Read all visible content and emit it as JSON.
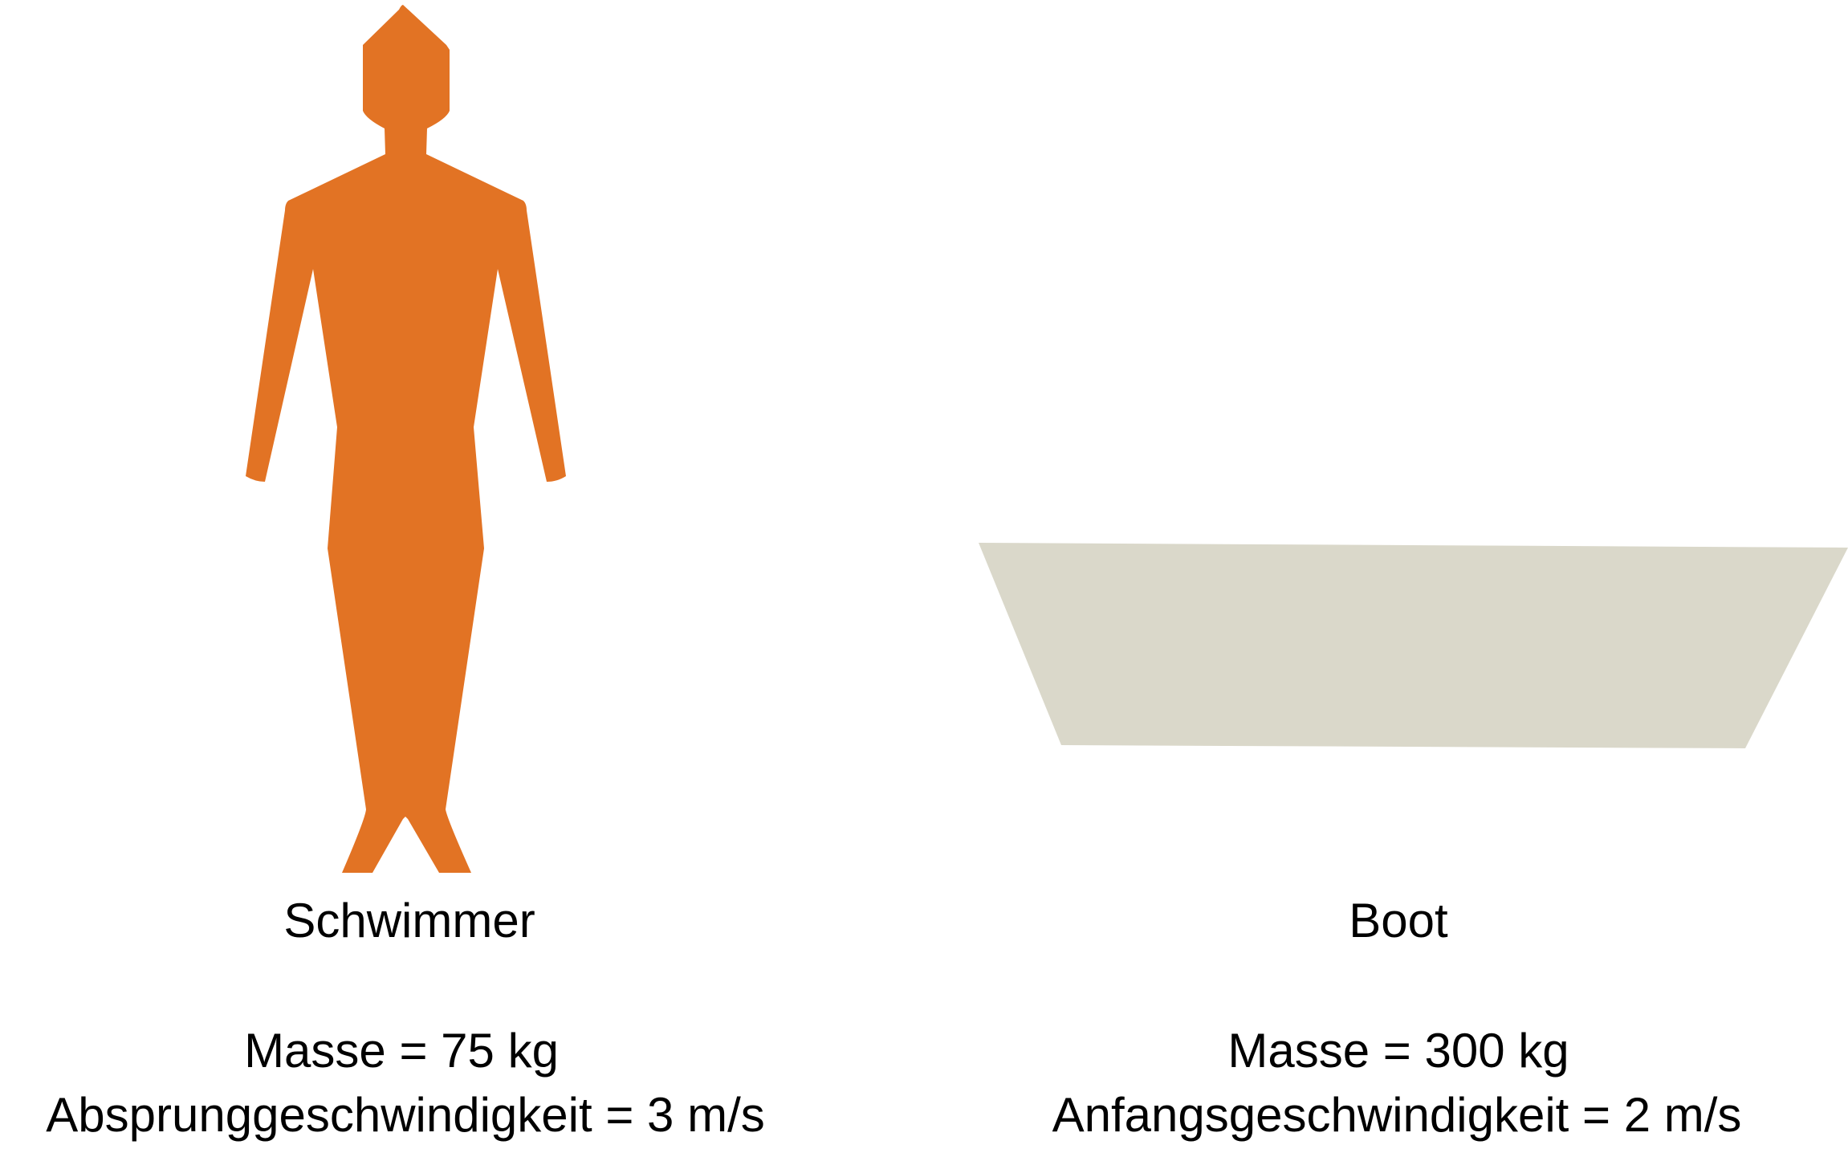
{
  "colors": {
    "swimmer": "#E27324",
    "boat": "#DAD8CA",
    "text": "#000000",
    "background": "#FFFFFF"
  },
  "swimmer": {
    "icon": "person-silhouette-icon",
    "label": "Schwimmer",
    "mass": "Masse = 75 kg",
    "velocity": "Absprunggeschwindigkeit = 3 m/s"
  },
  "boat": {
    "icon": "boat-hull-icon",
    "label": "Boot",
    "mass": "Masse = 300 kg",
    "velocity": "Anfangsgeschwindigkeit = 2 m/s"
  }
}
